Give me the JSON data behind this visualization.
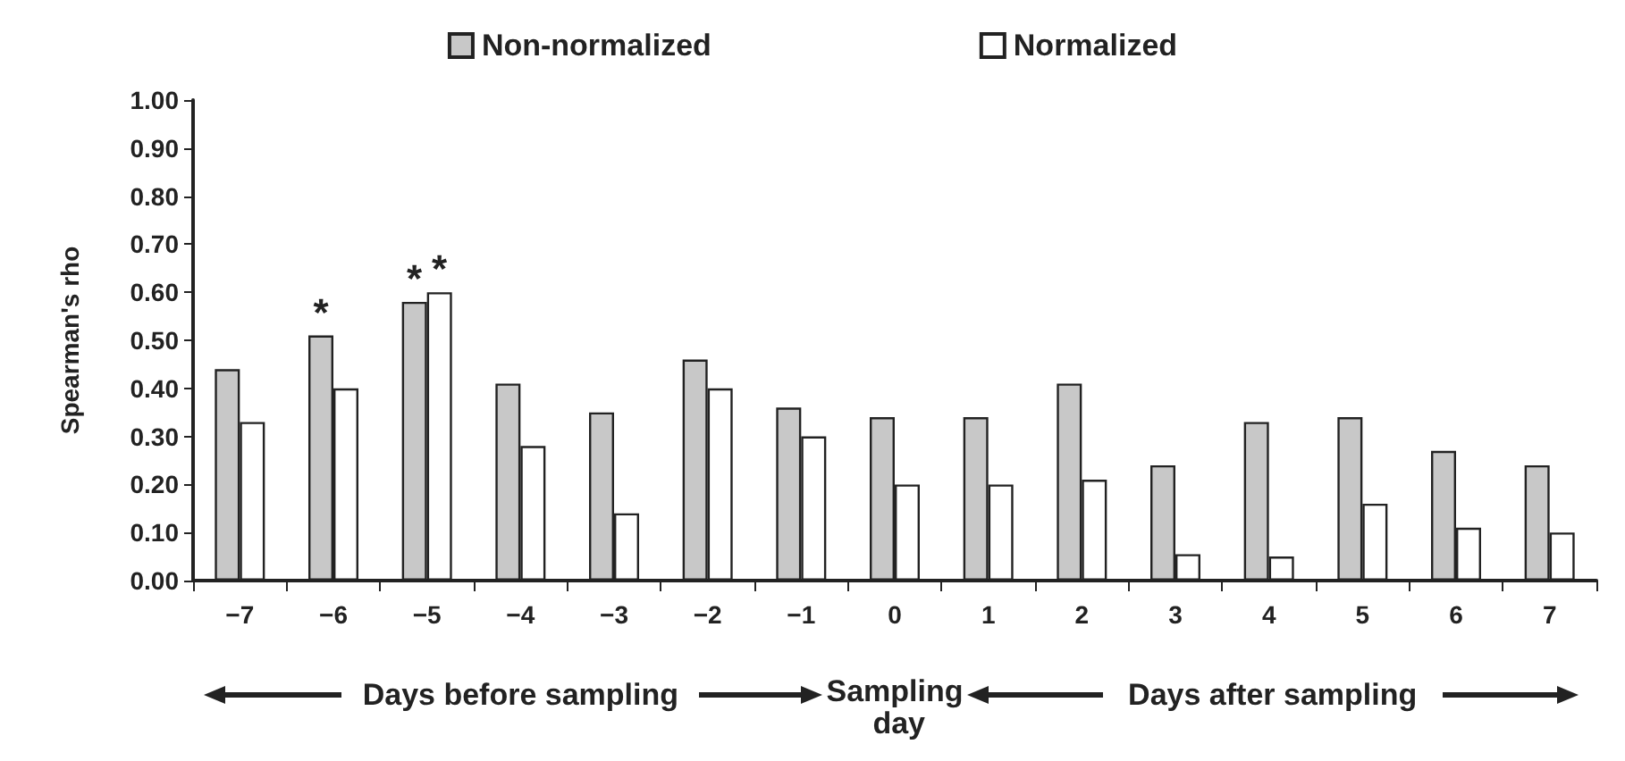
{
  "chart_data": {
    "type": "bar",
    "ylabel": "Spearman's rho",
    "categories": [
      "−7",
      "−6",
      "−5",
      "−4",
      "−3",
      "−2",
      "−1",
      "0",
      "1",
      "2",
      "3",
      "4",
      "5",
      "6",
      "7"
    ],
    "series": [
      {
        "name": "Non-normalized",
        "color": "#c8c8c8",
        "values": [
          0.44,
          0.51,
          0.58,
          0.41,
          0.35,
          0.46,
          0.36,
          0.34,
          0.34,
          0.41,
          0.24,
          0.33,
          0.34,
          0.27,
          0.24
        ]
      },
      {
        "name": "Normalized",
        "color": "#ffffff",
        "values": [
          0.33,
          0.4,
          0.6,
          0.28,
          0.14,
          0.4,
          0.3,
          0.2,
          0.2,
          0.21,
          0.055,
          0.05,
          0.16,
          0.11,
          0.1
        ]
      }
    ],
    "ylim": [
      0,
      1
    ],
    "yticks": [
      {
        "value": 0,
        "label": "0.00"
      },
      {
        "value": 0.1,
        "label": "0.10"
      },
      {
        "value": 0.2,
        "label": "0.20"
      },
      {
        "value": 0.3,
        "label": "0.30"
      },
      {
        "value": 0.4,
        "label": "0.40"
      },
      {
        "value": 0.5,
        "label": "0.50"
      },
      {
        "value": 0.6,
        "label": "0.60"
      },
      {
        "value": 0.7,
        "label": "0.70"
      },
      {
        "value": 0.8,
        "label": "0.80"
      },
      {
        "value": 0.9,
        "label": "0.90"
      },
      {
        "value": 1,
        "label": "1.00"
      }
    ],
    "annotations": [
      {
        "text": "*",
        "x": "−6",
        "y": 0.51
      },
      {
        "text": "*",
        "x": "−5",
        "y": 0.58
      },
      {
        "text": "*",
        "x": "−5",
        "y": 0.6
      },
      "Days before sampling",
      "Sampling day",
      "Days after sampling"
    ],
    "legend": "top",
    "grid": false
  }
}
